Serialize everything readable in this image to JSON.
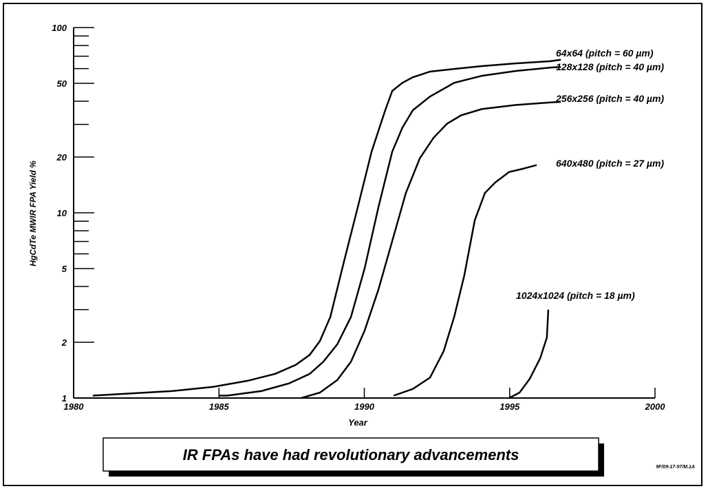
{
  "chart_data": {
    "type": "line",
    "xlabel": "Year",
    "ylabel": "HgCdTe MWIR FPA Yield %",
    "banner": "IR FPAs have had revolutionary advancements",
    "footnote": "9F/09-17-97/M.1A",
    "xlim": [
      1980,
      2000
    ],
    "xticks": [
      1980,
      1985,
      1990,
      1995,
      2000
    ],
    "ylim": [
      1,
      100
    ],
    "yticks": [
      1,
      2,
      5,
      10,
      20,
      50,
      100
    ],
    "yminorticks": [
      3,
      4,
      6,
      7,
      8,
      9,
      30,
      40,
      60,
      70,
      80,
      90
    ],
    "ylog": true,
    "grid": false,
    "series": [
      {
        "name": "64x64 (pitch = 60 µm)",
        "color": "#000000",
        "x": [
          1980.66,
          1983.38,
          1984.8,
          1985.99,
          1986.93,
          1987.64,
          1988.12,
          1988.47,
          1988.83,
          1989.3,
          1989.78,
          1990.25,
          1990.72,
          1990.96,
          1991.31,
          1991.67,
          1992.26,
          1993.09,
          1994.04,
          1995.22,
          1996.4,
          1996.76
        ],
        "values": [
          1.03,
          1.09,
          1.15,
          1.24,
          1.35,
          1.51,
          1.71,
          2.03,
          2.74,
          5.45,
          10.8,
          21.4,
          35.8,
          45.5,
          50.3,
          53.9,
          57.8,
          59.8,
          61.9,
          64.1,
          65.8,
          67.0
        ]
      },
      {
        "name": "128x128 (pitch = 40 µm)",
        "color": "#000000",
        "x": [
          1984.99,
          1985.28,
          1986.46,
          1987.41,
          1988.12,
          1988.59,
          1989.07,
          1989.54,
          1990.01,
          1990.49,
          1990.96,
          1991.31,
          1991.67,
          1992.26,
          1993.09,
          1994.04,
          1995.22,
          1996.4,
          1996.76
        ],
        "values": [
          1.03,
          1.03,
          1.09,
          1.2,
          1.35,
          1.57,
          1.95,
          2.74,
          5.0,
          10.8,
          21.4,
          28.8,
          35.8,
          42.4,
          50.3,
          54.9,
          58.3,
          60.8,
          61.3
        ]
      },
      {
        "name": "256x256 (pitch = 40 µm)",
        "color": "#000000",
        "x": [
          1987.83,
          1988.47,
          1989.07,
          1989.54,
          1990.01,
          1990.49,
          1990.96,
          1991.43,
          1991.91,
          1992.38,
          1992.85,
          1993.33,
          1994.04,
          1995.22,
          1996.4,
          1996.76
        ],
        "values": [
          1.0,
          1.07,
          1.25,
          1.57,
          2.31,
          3.87,
          7.05,
          12.8,
          19.7,
          25.4,
          30.3,
          33.6,
          36.3,
          38.2,
          39.4,
          39.7
        ]
      },
      {
        "name": "640x480 (pitch = 27 µm)",
        "color": "#000000",
        "x": [
          1991.01,
          1991.67,
          1992.26,
          1992.73,
          1993.09,
          1993.44,
          1993.8,
          1994.15,
          1994.51,
          1994.98,
          1995.46,
          1995.93
        ],
        "values": [
          1.03,
          1.12,
          1.29,
          1.79,
          2.74,
          4.59,
          9.1,
          12.8,
          14.6,
          16.6,
          17.3,
          18.1
        ]
      },
      {
        "name": "1024x1024 (pitch = 18 µm)",
        "color": "#000000",
        "x": [
          1994.98,
          1995.34,
          1995.69,
          1996.05,
          1996.28,
          1996.33
        ],
        "values": [
          1.0,
          1.07,
          1.27,
          1.64,
          2.12,
          3.0
        ]
      }
    ]
  }
}
